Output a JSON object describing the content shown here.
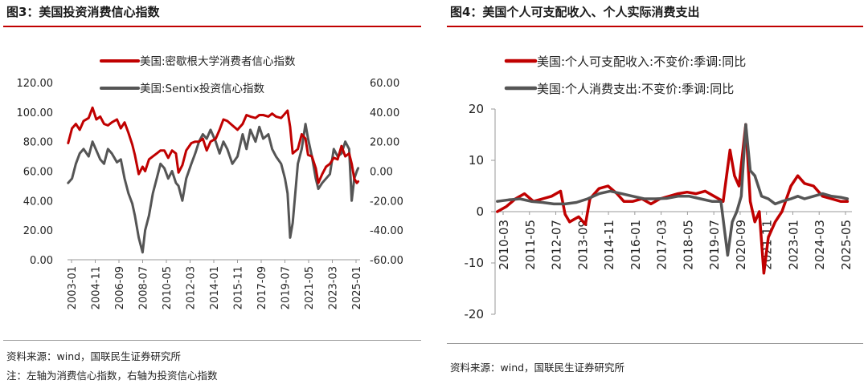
{
  "left_panel": {
    "title": "图3：美国投资消费信心指数",
    "source": "资料来源：wind，国联民生证券研究所",
    "note": "注：左轴为消费信心指数，右轴为投资信心指数"
  },
  "right_panel": {
    "title": "图4：美国个人可支配收入、个人实际消费支出",
    "source": "资料来源：wind，国联民生证券研究所"
  },
  "chart_data": [
    {
      "type": "line",
      "x_labels": [
        "2003-01",
        "2004-11",
        "2006-09",
        "2008-07",
        "2010-05",
        "2012-03",
        "2014-01",
        "2015-11",
        "2017-09",
        "2019-07",
        "2021-05",
        "2023-03",
        "2025-01"
      ],
      "y_left": {
        "ylim": [
          0,
          120
        ],
        "ticks": [
          "0.00",
          "20.00",
          "40.00",
          "60.00",
          "80.00",
          "100.00",
          "120.00"
        ]
      },
      "y_right": {
        "ylim": [
          -60,
          60
        ],
        "ticks": [
          "-60.00",
          "-40.00",
          "-20.00",
          "0.00",
          "20.00",
          "40.00",
          "60.00"
        ]
      },
      "series": [
        {
          "name": "美国:密歇根大学消费者信心指数",
          "axis": "left",
          "color": "#c00000",
          "x": [
            2003.0,
            2003.3,
            2003.6,
            2003.9,
            2004.2,
            2004.6,
            2004.9,
            2005.2,
            2005.5,
            2005.8,
            2006.1,
            2006.4,
            2006.8,
            2007.1,
            2007.4,
            2007.7,
            2008.0,
            2008.2,
            2008.5,
            2008.8,
            2009.0,
            2009.3,
            2009.6,
            2009.9,
            2010.2,
            2010.5,
            2010.8,
            2011.1,
            2011.4,
            2011.6,
            2011.9,
            2012.2,
            2012.6,
            2012.9,
            2013.2,
            2013.5,
            2013.8,
            2014.1,
            2014.5,
            2014.8,
            2015.1,
            2015.4,
            2015.8,
            2016.2,
            2016.6,
            2016.9,
            2017.2,
            2017.6,
            2017.9,
            2018.2,
            2018.6,
            2018.9,
            2019.2,
            2019.6,
            2019.9,
            2020.1,
            2020.3,
            2020.5,
            2020.9,
            2021.2,
            2021.5,
            2021.7,
            2022.0,
            2022.3,
            2022.5,
            2022.8,
            2023.1,
            2023.4,
            2023.7,
            2024.0,
            2024.3,
            2024.6,
            2024.9,
            2025.1,
            2025.3,
            2025.5,
            2025.6
          ],
          "values": [
            79,
            89,
            92,
            88,
            94,
            96,
            103,
            95,
            97,
            92,
            91,
            93,
            95,
            89,
            93,
            86,
            78,
            71,
            58,
            63,
            60,
            68,
            70,
            72,
            74,
            74,
            69,
            74,
            72,
            59,
            64,
            74,
            79,
            80,
            80,
            82,
            74,
            80,
            82,
            88,
            95,
            94,
            91,
            88,
            92,
            98,
            97,
            96,
            98,
            98,
            97,
            99,
            97,
            96,
            99,
            101,
            90,
            72,
            75,
            85,
            82,
            71,
            70,
            62,
            52,
            58,
            63,
            65,
            69,
            68,
            77,
            70,
            72,
            65,
            55,
            52,
            53
          ]
        },
        {
          "name": "美国:Sentix投资信心指数",
          "axis": "right",
          "color": "#555555",
          "x": [
            2003.0,
            2003.3,
            2003.6,
            2003.9,
            2004.2,
            2004.6,
            2004.9,
            2005.2,
            2005.5,
            2005.8,
            2006.1,
            2006.4,
            2006.8,
            2007.1,
            2007.4,
            2007.7,
            2008.0,
            2008.2,
            2008.5,
            2008.8,
            2009.0,
            2009.3,
            2009.6,
            2009.9,
            2010.2,
            2010.5,
            2010.8,
            2011.1,
            2011.4,
            2011.6,
            2011.9,
            2012.2,
            2012.6,
            2012.9,
            2013.2,
            2013.5,
            2013.8,
            2014.1,
            2014.5,
            2014.8,
            2015.1,
            2015.4,
            2015.8,
            2016.2,
            2016.6,
            2016.9,
            2017.2,
            2017.6,
            2017.9,
            2018.2,
            2018.6,
            2018.9,
            2019.2,
            2019.6,
            2019.9,
            2020.1,
            2020.3,
            2020.5,
            2020.9,
            2021.2,
            2021.5,
            2021.7,
            2022.0,
            2022.3,
            2022.5,
            2022.8,
            2023.1,
            2023.4,
            2023.7,
            2024.0,
            2024.3,
            2024.6,
            2024.9,
            2025.1,
            2025.3,
            2025.5,
            2025.6
          ],
          "values": [
            -8,
            -5,
            5,
            12,
            15,
            10,
            20,
            14,
            8,
            5,
            15,
            12,
            6,
            8,
            -5,
            -15,
            -22,
            -30,
            -45,
            -55,
            -40,
            -30,
            -15,
            -5,
            5,
            2,
            -5,
            0,
            -8,
            -10,
            -20,
            -5,
            5,
            12,
            20,
            25,
            22,
            28,
            20,
            12,
            20,
            15,
            5,
            10,
            25,
            15,
            28,
            20,
            30,
            22,
            25,
            15,
            10,
            5,
            -5,
            -15,
            -45,
            -35,
            5,
            15,
            32,
            22,
            10,
            -5,
            -12,
            -8,
            -5,
            -2,
            15,
            10,
            12,
            20,
            15,
            -20,
            -5,
            0,
            2
          ]
        }
      ]
    },
    {
      "type": "line",
      "x_labels": [
        "2010-03",
        "2011-05",
        "2012-07",
        "2013-09",
        "2014-11",
        "2016-01",
        "2017-03",
        "2018-05",
        "2019-07",
        "2020-09",
        "2021-11",
        "2023-01",
        "2024-03",
        "2025-05"
      ],
      "y_axis": {
        "ylim": [
          -20,
          20
        ],
        "ticks": [
          "-20",
          "-10",
          "0",
          "10",
          "20"
        ]
      },
      "series": [
        {
          "name": "美国:个人可支配收入:不变价:季调:同比",
          "color": "#c00000",
          "x": [
            2010.0,
            2010.4,
            2010.8,
            2011.2,
            2011.6,
            2012.0,
            2012.4,
            2012.8,
            2013.0,
            2013.2,
            2013.6,
            2013.9,
            2014.1,
            2014.5,
            2014.9,
            2015.3,
            2015.6,
            2016.0,
            2016.4,
            2016.8,
            2017.2,
            2017.6,
            2018.0,
            2018.4,
            2018.8,
            2019.2,
            2019.6,
            2020.0,
            2020.3,
            2020.5,
            2020.7,
            2021.0,
            2021.2,
            2021.4,
            2021.6,
            2021.8,
            2022.0,
            2022.3,
            2022.6,
            2023.0,
            2023.3,
            2023.6,
            2024.0,
            2024.4,
            2024.8,
            2025.2,
            2025.5
          ],
          "values": [
            0.0,
            1.0,
            2.5,
            3.5,
            2.0,
            2.5,
            3.0,
            4.0,
            -0.5,
            -2.0,
            -1.0,
            -2.5,
            2.5,
            4.5,
            5.0,
            3.5,
            2.0,
            2.0,
            2.5,
            1.5,
            2.5,
            3.0,
            3.5,
            3.8,
            3.5,
            4.0,
            3.0,
            2.0,
            12.0,
            7.0,
            5.0,
            17.0,
            2.0,
            -2.0,
            0.0,
            -12.0,
            -5.0,
            -2.0,
            0.0,
            5.0,
            7.0,
            5.5,
            5.0,
            3.0,
            2.5,
            2.0,
            2.0
          ]
        },
        {
          "name": "美国:个人消费支出:不变价:季调:同比",
          "color": "#555555",
          "x": [
            2010.0,
            2010.5,
            2011.0,
            2011.5,
            2012.0,
            2012.5,
            2013.0,
            2013.5,
            2014.0,
            2014.5,
            2015.0,
            2015.5,
            2016.0,
            2016.5,
            2017.0,
            2017.5,
            2018.0,
            2018.5,
            2019.0,
            2019.5,
            2019.9,
            2020.2,
            2020.4,
            2020.6,
            2020.8,
            2021.0,
            2021.2,
            2021.4,
            2021.7,
            2022.0,
            2022.3,
            2022.6,
            2023.0,
            2023.3,
            2023.6,
            2024.0,
            2024.4,
            2024.8,
            2025.2,
            2025.5
          ],
          "values": [
            2.0,
            2.3,
            2.5,
            2.0,
            1.8,
            1.5,
            1.5,
            1.8,
            2.5,
            3.5,
            4.0,
            3.5,
            3.0,
            2.5,
            2.5,
            2.6,
            3.0,
            3.0,
            2.5,
            2.0,
            2.0,
            -8.5,
            -2.0,
            0.0,
            3.0,
            17.0,
            8.0,
            7.0,
            3.0,
            2.5,
            1.5,
            2.0,
            2.5,
            3.0,
            2.5,
            3.0,
            3.5,
            3.0,
            2.8,
            2.5
          ]
        }
      ]
    }
  ]
}
